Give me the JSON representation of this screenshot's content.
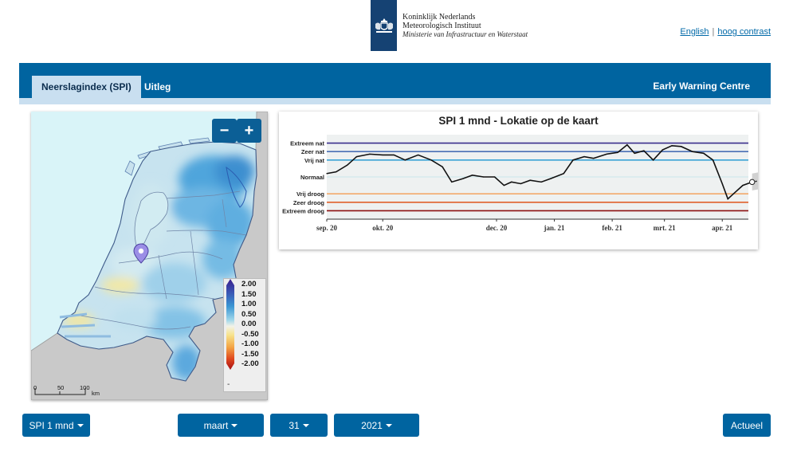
{
  "header": {
    "logo": {
      "line1": "Koninklijk Nederlands",
      "line2": "Meteorologisch Instituut",
      "line3": "Ministerie van Infrastructuur en Waterstaat"
    },
    "links": {
      "english": "English",
      "separator": "|",
      "contrast": "hoog contrast"
    }
  },
  "nav": {
    "tabs": [
      {
        "label": "Neerslagindex (SPI)",
        "active": true
      },
      {
        "label": "Uitleg",
        "active": false
      }
    ],
    "right_label": "Early Warning Centre"
  },
  "map": {
    "zoom_out": "−",
    "zoom_in": "+",
    "legend_values": [
      "2.00",
      "1.50",
      "1.00",
      "0.50",
      "0.00",
      "-0.50",
      "-1.00",
      "-1.50",
      "-2.00"
    ],
    "legend_extra": "-",
    "scale_labels": [
      "0",
      "50",
      "100",
      "km"
    ],
    "marker_icon": "location-pin-icon"
  },
  "chart_data": {
    "type": "line",
    "title": "SPI 1 mnd - Lokatie op de kaart",
    "xlabel": "",
    "ylabel": "",
    "x_tick_labels": [
      "sep. 20",
      "okt. 20",
      "dec. 20",
      "jan. 21",
      "feb. 21",
      "mrt. 21",
      "apr. 21"
    ],
    "x_range": [
      "2020-09-01",
      "2021-04-15"
    ],
    "y_range": [
      -2.5,
      2.5
    ],
    "reference_lines": [
      {
        "label": "Extreem nat",
        "value": 2.0,
        "color": "#3a2f8c"
      },
      {
        "label": "Zeer nat",
        "value": 1.5,
        "color": "#4a6fb5"
      },
      {
        "label": "Vrij nat",
        "value": 1.0,
        "color": "#3ba3d6"
      },
      {
        "label": "Normaal",
        "value": 0.0,
        "color": "#c8e6ea"
      },
      {
        "label": "Vrij droog",
        "value": -1.0,
        "color": "#f3a96b"
      },
      {
        "label": "Zeer droog",
        "value": -1.5,
        "color": "#e0612c"
      },
      {
        "label": "Extreem droog",
        "value": -2.0,
        "color": "#8b1010"
      }
    ],
    "series": [
      {
        "values": [
          [
            "2020-09-01",
            0.2
          ],
          [
            "2020-09-06",
            0.3
          ],
          [
            "2020-09-12",
            0.7
          ],
          [
            "2020-09-17",
            1.2
          ],
          [
            "2020-09-24",
            1.35
          ],
          [
            "2020-10-01",
            1.3
          ],
          [
            "2020-10-07",
            1.3
          ],
          [
            "2020-10-13",
            1.0
          ],
          [
            "2020-10-20",
            1.3
          ],
          [
            "2020-10-27",
            1.0
          ],
          [
            "2020-11-02",
            0.6
          ],
          [
            "2020-11-07",
            -0.3
          ],
          [
            "2020-11-13",
            -0.1
          ],
          [
            "2020-11-18",
            0.1
          ],
          [
            "2020-11-24",
            0.0
          ],
          [
            "2020-11-30",
            0.0
          ],
          [
            "2020-12-05",
            -0.5
          ],
          [
            "2020-12-09",
            -0.3
          ],
          [
            "2020-12-14",
            -0.4
          ],
          [
            "2020-12-19",
            -0.2
          ],
          [
            "2020-12-25",
            -0.3
          ],
          [
            "2020-12-30",
            -0.1
          ],
          [
            "2021-01-06",
            0.2
          ],
          [
            "2021-01-11",
            1.0
          ],
          [
            "2021-01-17",
            1.2
          ],
          [
            "2021-01-22",
            1.1
          ],
          [
            "2021-01-29",
            1.35
          ],
          [
            "2021-02-04",
            1.45
          ],
          [
            "2021-02-09",
            1.9
          ],
          [
            "2021-02-13",
            1.4
          ],
          [
            "2021-02-18",
            1.55
          ],
          [
            "2021-02-23",
            1.0
          ],
          [
            "2021-02-28",
            1.6
          ],
          [
            "2021-03-05",
            1.85
          ],
          [
            "2021-03-10",
            1.8
          ],
          [
            "2021-03-16",
            1.5
          ],
          [
            "2021-03-22",
            1.4
          ],
          [
            "2021-03-27",
            1.0
          ],
          [
            "2021-04-01",
            -0.4
          ],
          [
            "2021-04-04",
            -1.3
          ],
          [
            "2021-04-07",
            -1.0
          ],
          [
            "2021-04-12",
            -0.5
          ],
          [
            "2021-04-17",
            -0.3
          ],
          [
            "2021-04-22",
            -0.2
          ],
          [
            "2021-04-27",
            0.0
          ]
        ]
      }
    ],
    "grid": false,
    "legend": "none"
  },
  "controls": {
    "spi_select": "SPI 1 mnd",
    "month_select": "maart",
    "day_select": "31",
    "year_select": "2021",
    "actueel": "Actueel"
  }
}
